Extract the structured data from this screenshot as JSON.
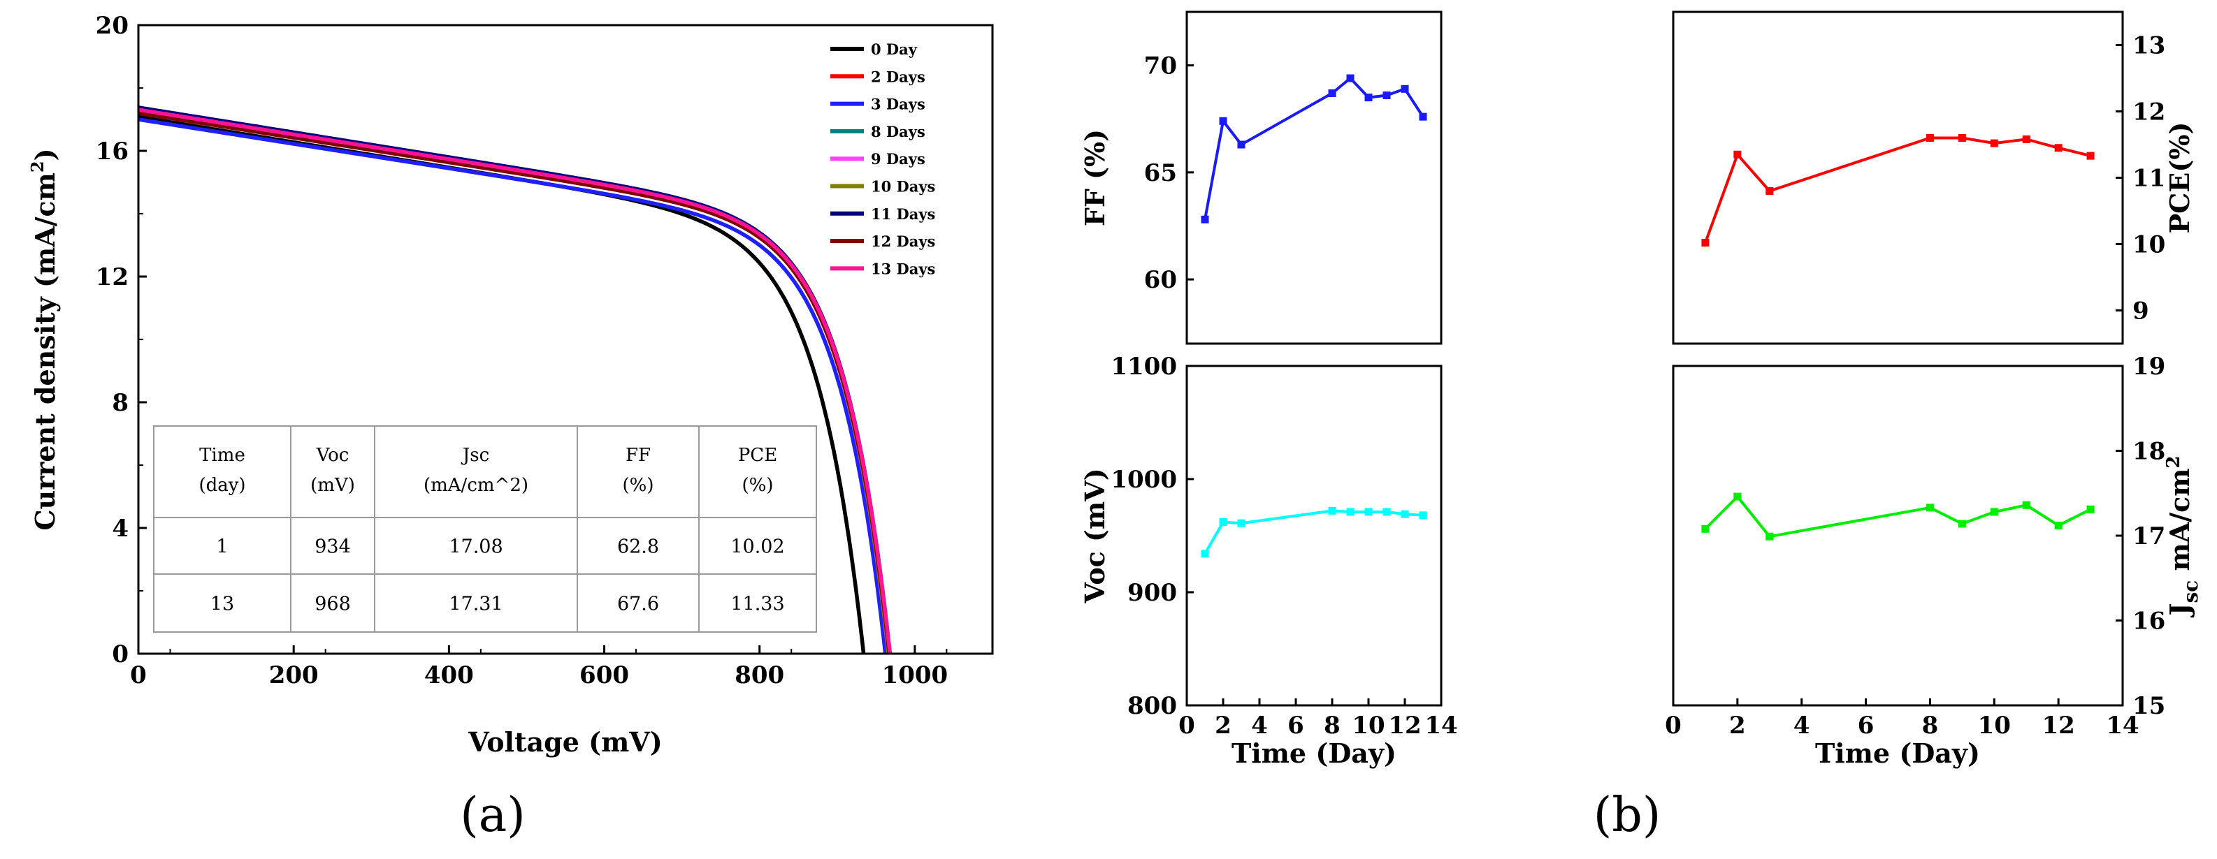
{
  "chart_data": [
    {
      "id": "a",
      "type": "line",
      "caption": "(a)",
      "xlabel": "Voltage (mV)",
      "ylabel": "Current density (mA/cm",
      "ylabel_sup": "2",
      "ylabel_end": ")",
      "xlim": [
        0,
        1100
      ],
      "ylim": [
        0,
        20
      ],
      "xticks": [
        "0",
        "200",
        "400",
        "600",
        "800",
        "1000"
      ],
      "yticks": [
        "0",
        "4",
        "8",
        "12",
        "16",
        "20"
      ],
      "legend_position": "top-right",
      "series": [
        {
          "name": "0 Day",
          "color": "#000000",
          "jsc": 17.08,
          "voc": 934,
          "knee": 0.9
        },
        {
          "name": "2 Days",
          "color": "#ff0000",
          "jsc": 17.3,
          "voc": 966,
          "knee": 0.55
        },
        {
          "name": "3 Days",
          "color": "#2020ff",
          "jsc": 17.0,
          "voc": 962,
          "knee": 0.6
        },
        {
          "name": "8 Days",
          "color": "#008080",
          "jsc": 17.35,
          "voc": 967,
          "knee": 0.5
        },
        {
          "name": "9 Days",
          "color": "#ff40ff",
          "jsc": 17.25,
          "voc": 966,
          "knee": 0.52
        },
        {
          "name": "10 Days",
          "color": "#808000",
          "jsc": 17.28,
          "voc": 966,
          "knee": 0.5
        },
        {
          "name": "11 Days",
          "color": "#00007f",
          "jsc": 17.38,
          "voc": 968,
          "knee": 0.48
        },
        {
          "name": "12 Days",
          "color": "#800000",
          "jsc": 17.2,
          "voc": 967,
          "knee": 0.5
        },
        {
          "name": "13 Days",
          "color": "#ff1493",
          "jsc": 17.31,
          "voc": 968,
          "knee": 0.5
        }
      ],
      "table": {
        "headers": [
          [
            "Time",
            "(day)"
          ],
          [
            "Voc",
            "(mV)"
          ],
          [
            "Jsc",
            "(mA/cm^2)"
          ],
          [
            "FF",
            "(%)"
          ],
          [
            "PCE",
            "(%)"
          ]
        ],
        "rows": [
          [
            "1",
            "934",
            "17.08",
            "62.8",
            "10.02"
          ],
          [
            "13",
            "968",
            "17.31",
            "67.6",
            "11.33"
          ]
        ]
      }
    },
    {
      "id": "b",
      "type": "line",
      "caption": "(b)",
      "xlabel": "Time (Day)",
      "xlim": [
        0,
        14
      ],
      "xticks": [
        "0",
        "2",
        "4",
        "6",
        "8",
        "10",
        "12",
        "14"
      ],
      "x": [
        1,
        2,
        3,
        8,
        9,
        10,
        11,
        12,
        13
      ],
      "panels": [
        {
          "name": "FF",
          "ylabel": "FF (%)",
          "side": "left",
          "ylim": [
            57,
            72.5
          ],
          "yticks": [
            60,
            65,
            70
          ],
          "color": "#1a1aff",
          "values": [
            62.8,
            67.4,
            66.3,
            68.7,
            69.4,
            68.5,
            68.6,
            68.9,
            67.6
          ]
        },
        {
          "name": "PCE",
          "ylabel": "PCE(%)",
          "side": "right",
          "ylim": [
            8.5,
            13.5
          ],
          "yticks": [
            9,
            10,
            11,
            12,
            13
          ],
          "color": "#ff0000",
          "values": [
            10.02,
            11.35,
            10.8,
            11.6,
            11.6,
            11.52,
            11.58,
            11.45,
            11.33
          ]
        },
        {
          "name": "Voc",
          "ylabel": "Voc (mV)",
          "side": "left",
          "ylim": [
            800,
            1100
          ],
          "yticks": [
            800,
            900,
            1000,
            1100
          ],
          "color": "#00ffff",
          "values": [
            934,
            962,
            961,
            972,
            971,
            971,
            971,
            969,
            968
          ]
        },
        {
          "name": "Jsc",
          "ylabel": "J",
          "ylabel_sub": "sc",
          "ylabel_rest": " mA/cm",
          "ylabel_sup": "2",
          "side": "right",
          "ylim": [
            15,
            19
          ],
          "yticks": [
            15,
            16,
            17,
            18,
            19
          ],
          "color": "#00ee00",
          "values": [
            17.08,
            17.46,
            16.99,
            17.33,
            17.14,
            17.28,
            17.36,
            17.12,
            17.31
          ]
        }
      ]
    }
  ]
}
